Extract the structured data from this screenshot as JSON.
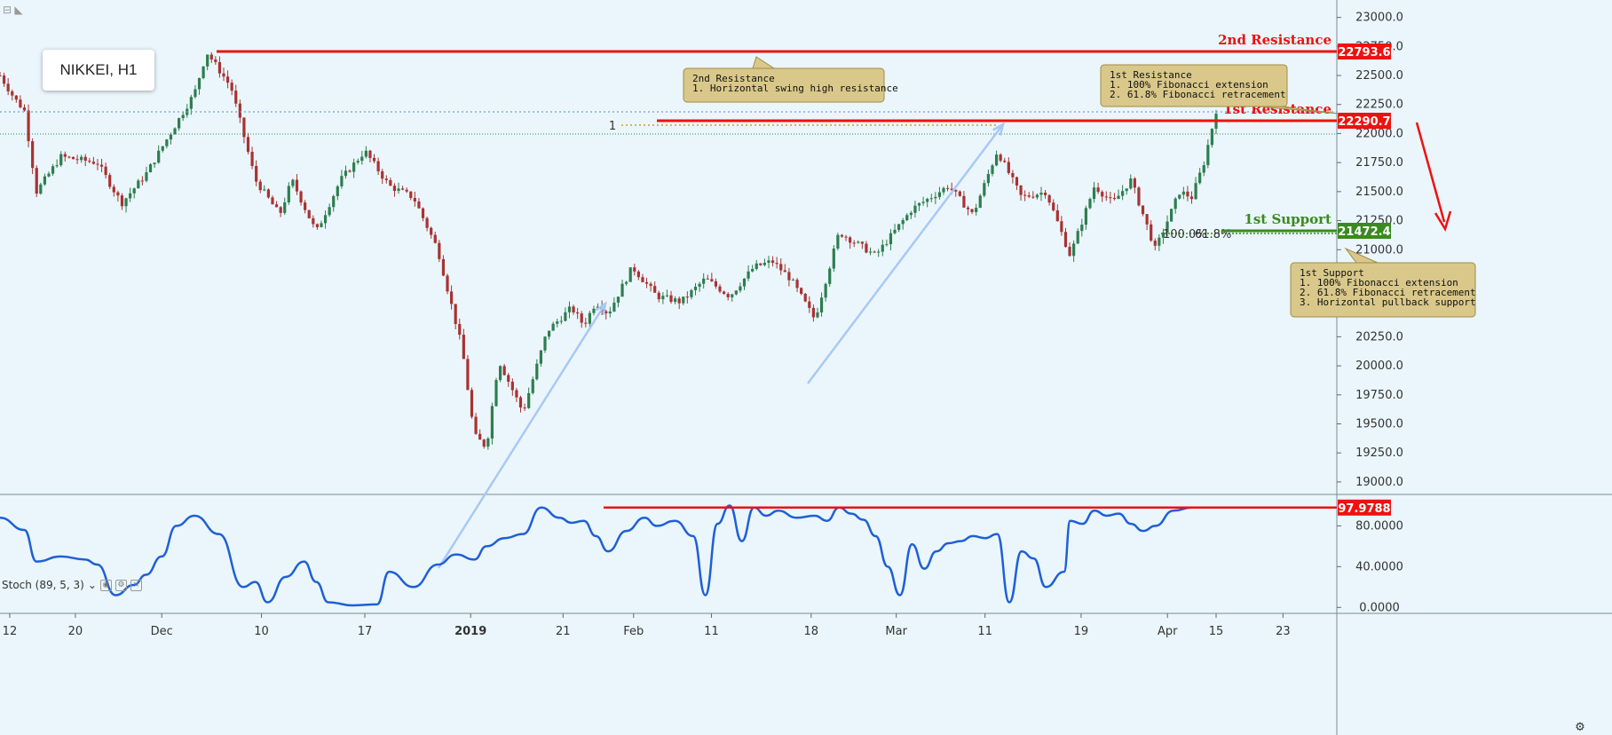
{
  "header": {
    "symbol_label": "NIKKEI, H1"
  },
  "indicator": {
    "name": "Stoch (89, 5, 3)",
    "current_value": "97.9788"
  },
  "colors": {
    "background": "#eaf6fb",
    "up_candle": "#2e7d4f",
    "down_candle": "#a83232",
    "resistance": "#ee1111",
    "support": "#3a8a1f",
    "stoch_line": "#1f5fd6",
    "arrow": "#a9c8f5",
    "callout_fill": "#d9c88a"
  },
  "chart_data": [
    {
      "type": "line",
      "subtype": "candlestick",
      "symbol": "NIKKEI",
      "timeframe": "H1",
      "ylim": [
        18900,
        23150
      ],
      "y_ticks": [
        19000,
        19250,
        19500,
        19750,
        20000,
        20250,
        20500,
        20750,
        21000,
        21250,
        21500,
        21750,
        22000,
        22250,
        22500,
        22750,
        23000
      ],
      "y_tick_labels": [
        "19000.0",
        "19250.0",
        "19500.0",
        "19750.0",
        "20000.0",
        "20250.0",
        "20500.0",
        "20750.0",
        "21000.0",
        "21250.0",
        "21500.0",
        "21750.0",
        "22000.0",
        "22250.0",
        "22500.0",
        "22750.0",
        "23000.0"
      ],
      "x_tick_labels": [
        "12",
        "20",
        "Dec",
        "10",
        "17",
        "2019",
        "21",
        "Feb",
        "11",
        "18",
        "Mar",
        "11",
        "19",
        "Apr",
        "15",
        "23"
      ],
      "x_ticks_pct": [
        0.8,
        6.2,
        13.3,
        21.5,
        30,
        38.7,
        46.3,
        52.1,
        58.5,
        66.7,
        73.7,
        81,
        88.9,
        96,
        100,
        105.5
      ],
      "price_path_x_pct": [
        0,
        1.2,
        2,
        3,
        5,
        8,
        10,
        12,
        14,
        16,
        17,
        19,
        21,
        23,
        24,
        26,
        28,
        30,
        32,
        34,
        36,
        38,
        39,
        40,
        41,
        43,
        45,
        47,
        48,
        49,
        50,
        52,
        54,
        56,
        58,
        60,
        62,
        63.5,
        65,
        67,
        69,
        72,
        75,
        78,
        80,
        82,
        84,
        86,
        88,
        90,
        91.5,
        93,
        95,
        97,
        98,
        99,
        100
      ],
      "price_path_y": [
        22500,
        22300,
        22200,
        21500,
        21800,
        21750,
        21400,
        21650,
        22000,
        22350,
        22700,
        22400,
        21600,
        21300,
        21600,
        21150,
        21600,
        21850,
        21550,
        21450,
        21000,
        20150,
        19400,
        19300,
        20050,
        19600,
        20300,
        20500,
        20350,
        20550,
        20450,
        20850,
        20600,
        20550,
        20750,
        20600,
        20850,
        20900,
        20750,
        20400,
        21150,
        20950,
        21350,
        21550,
        21300,
        21850,
        21450,
        21500,
        20950,
        21550,
        21400,
        21600,
        21000,
        21500,
        21450,
        21750,
        22200
      ],
      "levels": [
        {
          "label": "2nd Resistance",
          "value": "22793.6"
        },
        {
          "label": "1st Resistance",
          "value": "22290.7"
        },
        {
          "label": "1st Support",
          "value": "21472.4"
        }
      ],
      "fib_markers": [
        "1",
        "100.0%",
        "61.8%"
      ],
      "annotations": [
        {
          "lines": [
            "2nd Resistance",
            "1. Horizontal swing high resistance"
          ]
        },
        {
          "lines": [
            "1st Resistance",
            "1. 100% Fibonacci extension",
            "2. 61.8% Fibonacci retracement"
          ]
        },
        {
          "lines": [
            "1st Support",
            "1. 100% Fibonacci extension",
            "2. 61.8% Fibonacci retracement",
            "3. Horizontal pullback support"
          ]
        }
      ]
    },
    {
      "type": "line",
      "name": "Stoch (89, 5, 3)",
      "ylim": [
        -5,
        110
      ],
      "y_ticks": [
        0,
        40,
        80
      ],
      "y_tick_labels": [
        "0.0000",
        "40.0000",
        "80.0000"
      ],
      "x_pct": [
        0,
        2,
        3,
        5,
        7,
        8,
        9.5,
        11,
        12,
        13.3,
        14.5,
        16,
        18,
        20,
        21,
        22,
        23.5,
        25,
        26,
        27,
        29,
        31,
        32,
        34,
        36,
        37.5,
        39,
        40,
        41.5,
        43,
        44.5,
        46,
        47,
        48,
        49,
        50,
        51.5,
        53,
        54,
        55.5,
        57,
        58,
        59,
        60,
        61,
        62,
        63,
        64,
        65.5,
        67,
        68,
        69,
        70,
        71,
        72,
        73,
        74,
        75,
        76,
        77,
        78,
        79,
        80,
        81,
        82,
        83,
        84,
        85,
        86,
        87.5,
        88,
        89,
        90,
        91,
        92,
        93,
        94,
        95,
        96.5,
        98,
        99,
        100
      ],
      "y": [
        88,
        76,
        45,
        50,
        47,
        42,
        12,
        22,
        32,
        50,
        80,
        90,
        72,
        20,
        25,
        5,
        30,
        45,
        25,
        5,
        2,
        3,
        35,
        20,
        42,
        52,
        47,
        60,
        68,
        72,
        98,
        88,
        83,
        85,
        70,
        55,
        75,
        88,
        80,
        85,
        70,
        12,
        82,
        100,
        65,
        98,
        90,
        95,
        88,
        90,
        85,
        98,
        92,
        86,
        70,
        40,
        12,
        62,
        38,
        55,
        63,
        65,
        70,
        68,
        72,
        5,
        55,
        48,
        20,
        35,
        85,
        82,
        95,
        90,
        92,
        82,
        75,
        80,
        95,
        97.9788,
        97.9788,
        97.9788
      ],
      "overbought_line": 97.9788
    }
  ]
}
